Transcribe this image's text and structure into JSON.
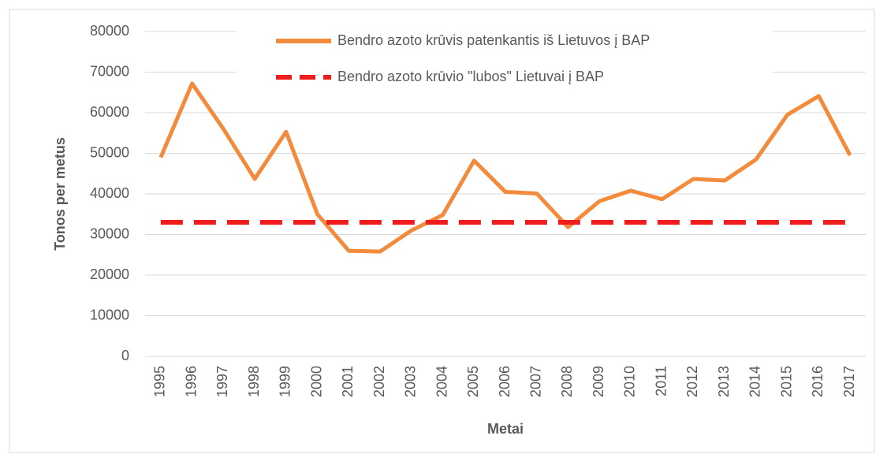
{
  "chart_data": {
    "type": "line",
    "x_label": "Metai",
    "y_label": "Tonos per metus",
    "categories": [
      "1995",
      "1996",
      "1997",
      "1998",
      "1999",
      "2000",
      "2001",
      "2002",
      "2003",
      "2004",
      "2005",
      "2006",
      "2007",
      "2008",
      "2009",
      "2010",
      "2011",
      "2012",
      "2013",
      "2014",
      "2015",
      "2016",
      "2017"
    ],
    "series": [
      {
        "name": "Bendro azoto krūvis patenkantis iš Lietuvos į BAP",
        "color": "#f28c3c",
        "line_style": "solid",
        "values": [
          49000,
          67200,
          56000,
          43700,
          55300,
          35000,
          26000,
          25800,
          31000,
          34800,
          48200,
          40500,
          40100,
          31800,
          38200,
          40800,
          38700,
          43700,
          43300,
          48500,
          59500,
          64100,
          49500
        ]
      },
      {
        "name": "Bendro azoto krūvio \"lubos\" Lietuvai į BAP",
        "color": "#ee1c1c",
        "line_style": "dashed",
        "values": [
          33000,
          33000,
          33000,
          33000,
          33000,
          33000,
          33000,
          33000,
          33000,
          33000,
          33000,
          33000,
          33000,
          33000,
          33000,
          33000,
          33000,
          33000,
          33000,
          33000,
          33000,
          33000,
          33000
        ]
      }
    ],
    "ylim": [
      0,
      80000
    ],
    "yticks": [
      0,
      10000,
      20000,
      30000,
      40000,
      50000,
      60000,
      70000,
      80000
    ],
    "grid": true
  }
}
